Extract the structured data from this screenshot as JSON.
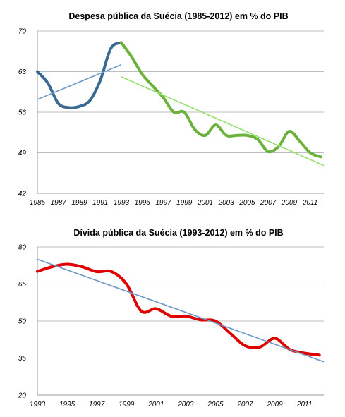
{
  "chart_data": [
    {
      "type": "line",
      "title": "Despesa pública da Suécia (1985-2012) em % do PIB",
      "xlabel": "",
      "ylabel": "",
      "xlim": [
        1985,
        2012.3
      ],
      "ylim": [
        42,
        70
      ],
      "yticks": [
        "42",
        "49",
        "56",
        "63",
        "70"
      ],
      "xticks": [
        "1985",
        "1987",
        "1989",
        "1991",
        "1993",
        "1995",
        "1997",
        "1999",
        "2001",
        "2003",
        "2005",
        "2007",
        "2009",
        "2011"
      ],
      "grid": "horizontal",
      "legend": "none",
      "series": [
        {
          "color": "#3a6a93",
          "x": [
            1985,
            1986,
            1987,
            1988,
            1989,
            1990,
            1991,
            1992,
            1993
          ],
          "y": [
            63,
            61,
            57.5,
            56.8,
            57,
            58,
            61.5,
            67,
            68
          ]
        },
        {
          "color": "#6ab23c",
          "x": [
            1993,
            1994,
            1995,
            1996,
            1997,
            1998,
            1999,
            2000,
            2001,
            2002,
            2003,
            2004,
            2005,
            2006,
            2007,
            2008,
            2009,
            2010,
            2011,
            2012
          ],
          "y": [
            68,
            65.5,
            62.5,
            60.5,
            58.5,
            56,
            56,
            53,
            52,
            53.8,
            52,
            52,
            52,
            51.3,
            49.2,
            50.1,
            52.7,
            51,
            49,
            48.3
          ]
        },
        {
          "color": "#6b97c4",
          "trend": true,
          "x": [
            1985,
            1993
          ],
          "y": [
            58.2,
            64.2
          ]
        },
        {
          "color": "#93e06c",
          "trend": true,
          "x": [
            1993,
            2012.3
          ],
          "y": [
            62.1,
            46.8
          ]
        }
      ]
    },
    {
      "type": "line",
      "title": "Dívida pública da Suécia (1993-2012) em % do PIB",
      "xlabel": "",
      "ylabel": "",
      "xlim": [
        1993,
        2012.3
      ],
      "ylim": [
        20,
        80
      ],
      "yticks": [
        "20",
        "35",
        "50",
        "65",
        "80"
      ],
      "xticks": [
        "1993",
        "1995",
        "1997",
        "1999",
        "2001",
        "2003",
        "2005",
        "2007",
        "2009",
        "2011"
      ],
      "grid": "horizontal",
      "legend": "none",
      "series": [
        {
          "color": "#e00000",
          "x": [
            1993,
            1994,
            1995,
            1996,
            1997,
            1998,
            1999,
            2000,
            2001,
            2002,
            2003,
            2004,
            2005,
            2006,
            2007,
            2008,
            2009,
            2010,
            2011,
            2012
          ],
          "y": [
            70.1,
            72,
            73,
            72,
            70,
            70,
            65,
            54,
            55,
            52,
            52,
            50.5,
            50,
            45,
            40,
            39.5,
            43,
            38.5,
            37,
            36.2
          ]
        },
        {
          "color": "#6b97c4",
          "trend": true,
          "x": [
            1993,
            2012.3
          ],
          "y": [
            75,
            33.5
          ]
        }
      ]
    }
  ]
}
